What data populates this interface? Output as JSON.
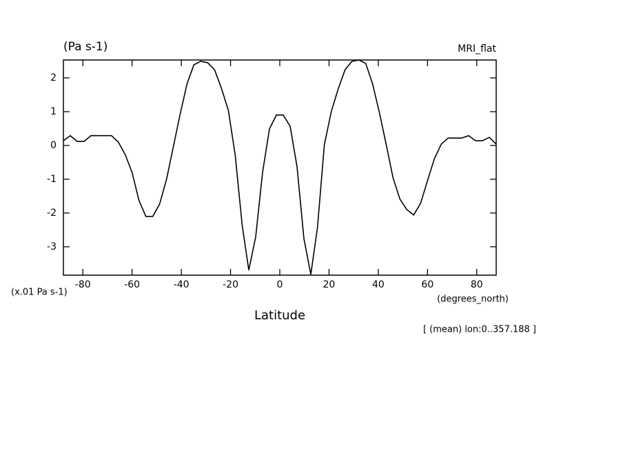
{
  "chart_data": {
    "type": "line",
    "title": "(Pa s-1)",
    "subtitle": "MRI_flat",
    "y_unit_label": "(x.01 Pa s-1)",
    "x_unit_label": "(degrees_north)",
    "x_label": "Latitude",
    "annotation": "[ (mean) lon:0..357.188 ]",
    "x": [
      -87.9,
      -85.1,
      -82.3,
      -79.5,
      -76.7,
      -73.9,
      -71.2,
      -68.4,
      -65.6,
      -62.8,
      -60.0,
      -57.2,
      -54.4,
      -51.6,
      -48.8,
      -46.0,
      -43.3,
      -40.5,
      -37.7,
      -34.9,
      -32.1,
      -29.3,
      -26.5,
      -23.7,
      -20.9,
      -18.1,
      -15.3,
      -12.6,
      -9.8,
      -7.0,
      -4.2,
      -1.4,
      1.4,
      4.2,
      7.0,
      9.8,
      12.6,
      15.3,
      18.1,
      20.9,
      23.7,
      26.5,
      29.3,
      32.1,
      34.9,
      37.7,
      40.5,
      43.3,
      46.0,
      48.8,
      51.6,
      54.4,
      57.2,
      60.0,
      62.8,
      65.6,
      68.4,
      71.2,
      73.9,
      76.7,
      79.5,
      82.3,
      85.1,
      87.9
    ],
    "series": [
      {
        "color": "#000000",
        "values": [
          0.14,
          0.29,
          0.12,
          0.12,
          0.29,
          0.29,
          0.29,
          0.29,
          0.1,
          -0.27,
          -0.8,
          -1.63,
          -2.1,
          -2.1,
          -1.73,
          -1,
          -0.06,
          0.92,
          1.82,
          2.39,
          2.49,
          2.45,
          2.24,
          1.69,
          1.04,
          -0.29,
          -2.35,
          -3.69,
          -2.71,
          -0.8,
          0.49,
          0.9,
          0.9,
          0.57,
          -0.63,
          -2.76,
          -3.82,
          -2.43,
          0.02,
          1.0,
          1.67,
          2.24,
          2.49,
          2.53,
          2.43,
          1.82,
          0.96,
          0,
          -0.96,
          -1.59,
          -1.9,
          -2.06,
          -1.71,
          -1.04,
          -0.39,
          0.04,
          0.22,
          0.22,
          0.22,
          0.29,
          0.14,
          0.14,
          0.24,
          0.04
        ]
      }
    ],
    "xlim": [
      -87.9,
      87.9
    ],
    "xticks": [
      -80,
      -60,
      -40,
      -20,
      0,
      20,
      40,
      60,
      80
    ],
    "ylim": [
      -3.84,
      2.53
    ],
    "yticks": [
      -3,
      -2,
      -1,
      0,
      1,
      2
    ]
  }
}
